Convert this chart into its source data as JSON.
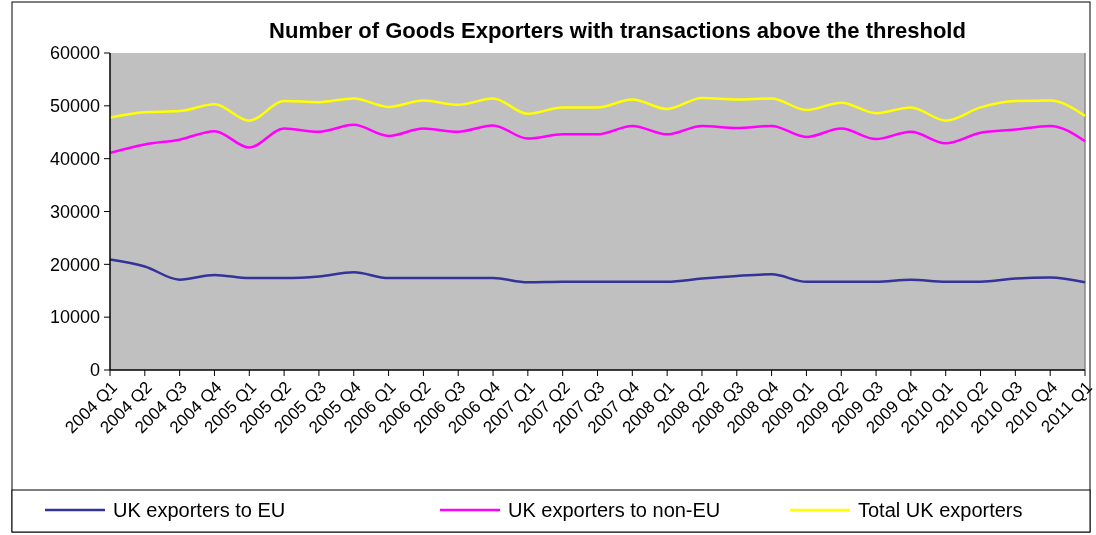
{
  "chart_data": {
    "type": "line",
    "title": "Number of Goods Exporters with transactions above the threshold",
    "categories": [
      "2004 Q1",
      "2004 Q2",
      "2004 Q3",
      "2004 Q4",
      "2005 Q1",
      "2005 Q2",
      "2005 Q3",
      "2005 Q4",
      "2006 Q1",
      "2006 Q2",
      "2006 Q3",
      "2006 Q4",
      "2007 Q1",
      "2007 Q2",
      "2007 Q3",
      "2007 Q4",
      "2008 Q1",
      "2008 Q2",
      "2008 Q3",
      "2008 Q4",
      "2009 Q1",
      "2009 Q2",
      "2009 Q3",
      "2009 Q4",
      "2010 Q1",
      "2010 Q2",
      "2010 Q3",
      "2010 Q4",
      "2011 Q1"
    ],
    "series": [
      {
        "name": "UK exporters to EU",
        "color": "#333399",
        "values": [
          20900,
          19600,
          17100,
          18000,
          17400,
          17400,
          17700,
          18500,
          17400,
          17400,
          17400,
          17400,
          16600,
          16700,
          16700,
          16700,
          16700,
          17300,
          17800,
          18100,
          16700,
          16700,
          16700,
          17100,
          16700,
          16700,
          17300,
          17500,
          16600
        ]
      },
      {
        "name": "UK exporters to non-EU",
        "color": "#ff00ff",
        "values": [
          41100,
          42700,
          43600,
          45200,
          42100,
          45700,
          45100,
          46400,
          44300,
          45700,
          45100,
          46300,
          43800,
          44600,
          44600,
          46200,
          44600,
          46200,
          45800,
          46200,
          44100,
          45700,
          43700,
          45100,
          42900,
          44900,
          45500,
          46200,
          43300
        ]
      },
      {
        "name": "Total UK exporters",
        "color": "#ffff00",
        "values": [
          47800,
          48800,
          49000,
          50300,
          47200,
          50900,
          50700,
          51400,
          49800,
          51000,
          50200,
          51400,
          48500,
          49700,
          49700,
          51200,
          49400,
          51500,
          51200,
          51400,
          49200,
          50600,
          48600,
          49700,
          47200,
          49700,
          50900,
          51000,
          48100
        ]
      }
    ],
    "ylim": [
      0,
      60000
    ],
    "yticks": [
      0,
      10000,
      20000,
      30000,
      40000,
      50000,
      60000
    ],
    "grid": false,
    "legend": "bottom",
    "marker": "none",
    "line_style": "solid"
  }
}
